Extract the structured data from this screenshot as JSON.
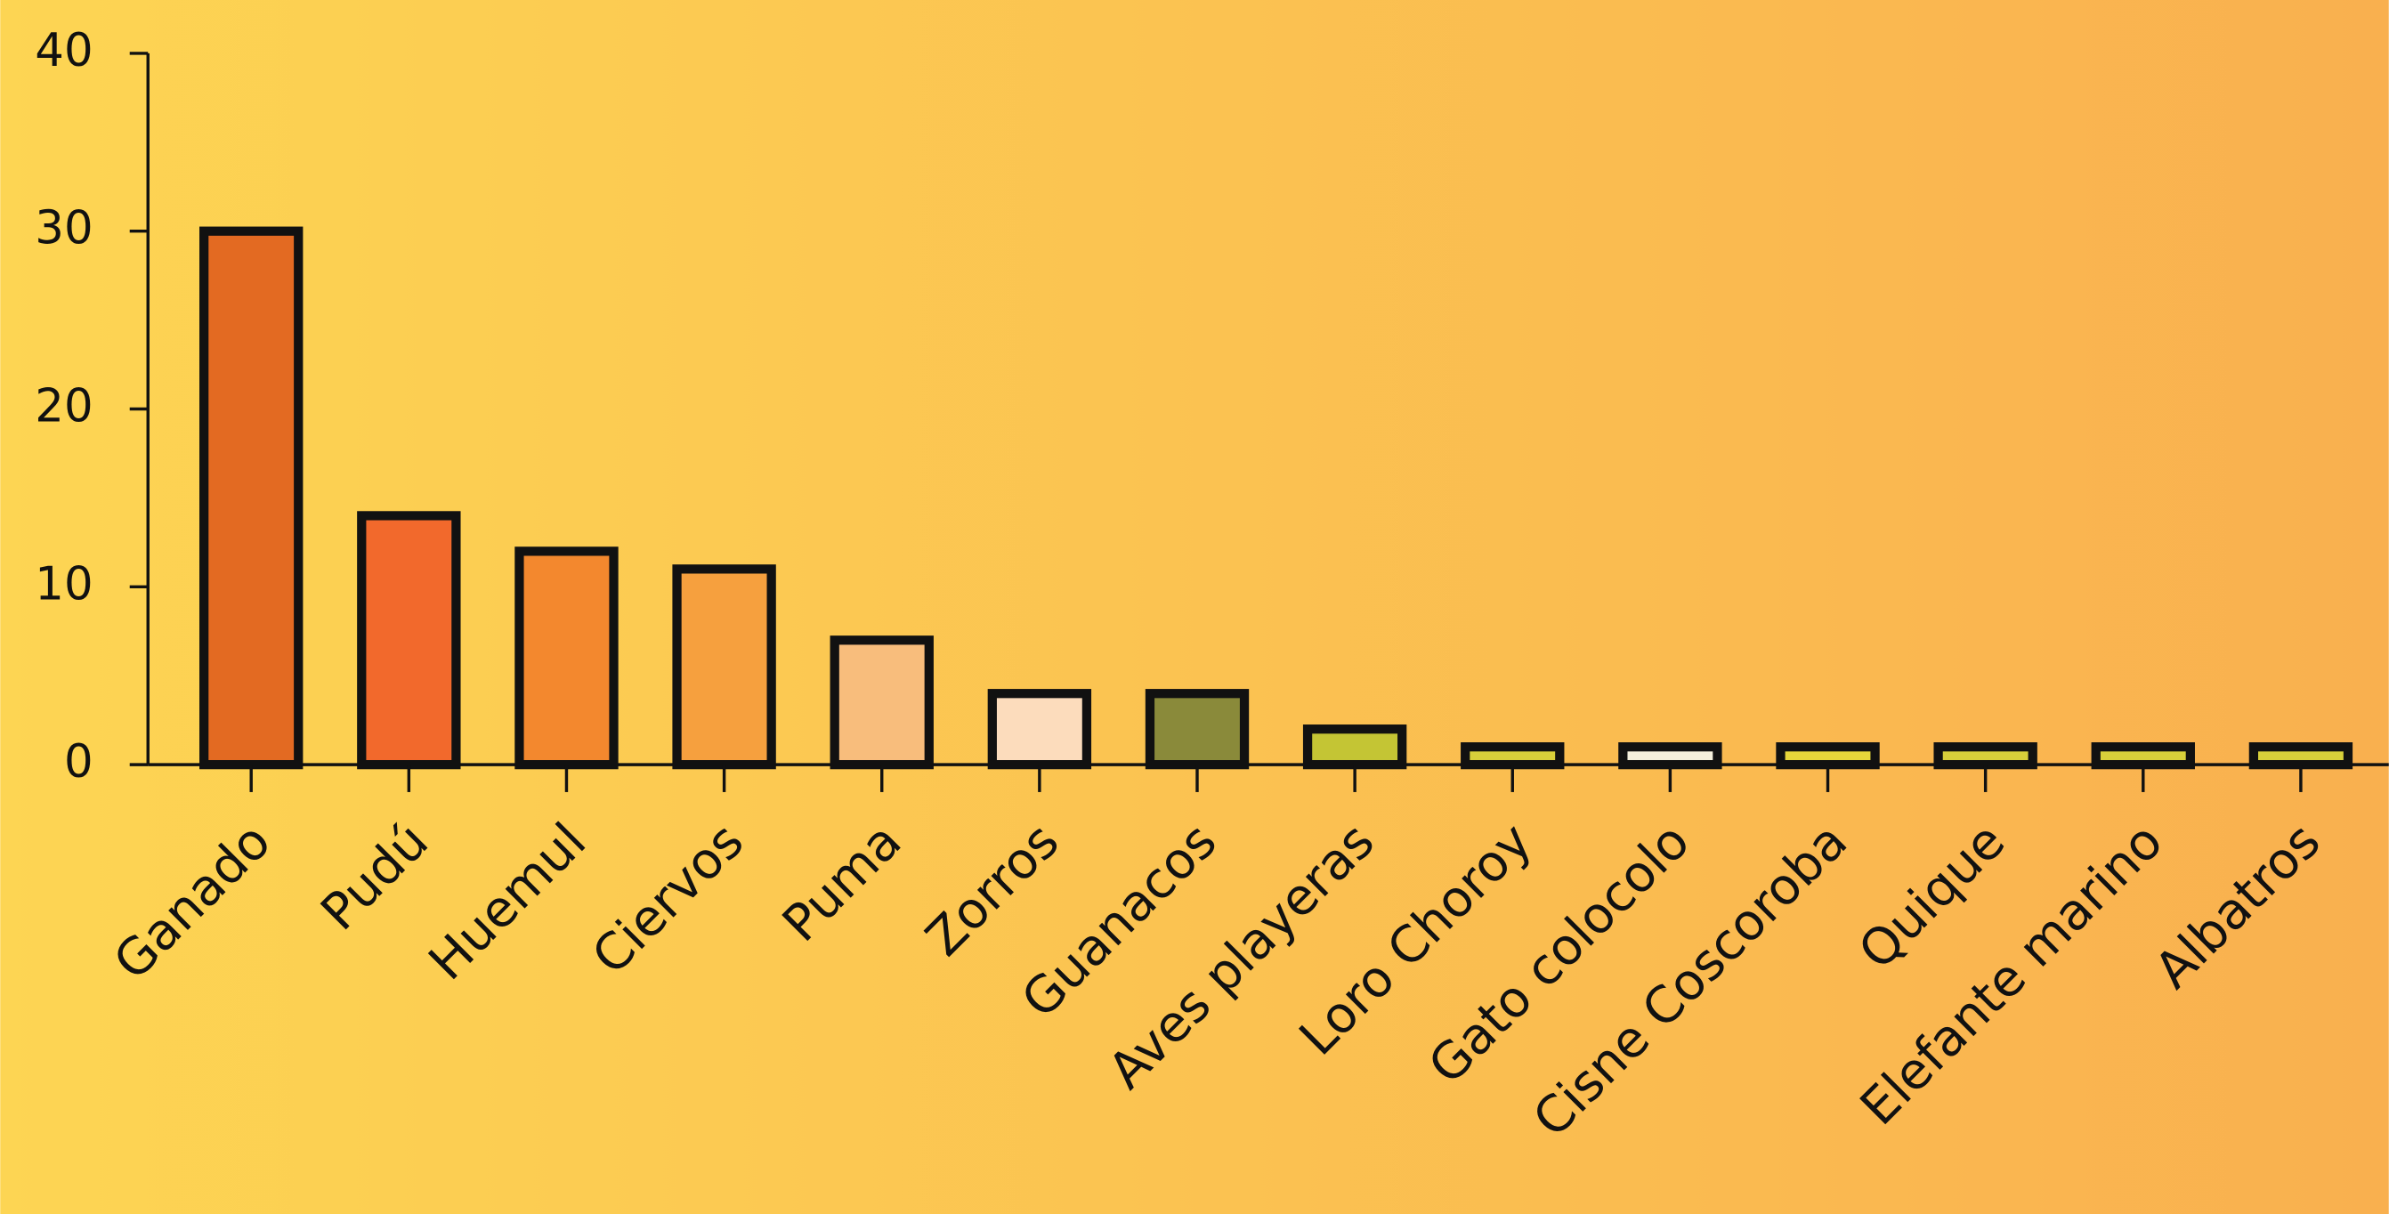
{
  "chart_data": {
    "type": "bar",
    "categories": [
      "Ganado",
      "Pudú",
      "Huemul",
      "Ciervos",
      "Puma",
      "Zorros",
      "Guanacos",
      "Aves playeras",
      "Loro Choroy",
      "Gato colocolo",
      "Cisne Coscoroba",
      "Quique",
      "Elefante marino",
      "Albatros"
    ],
    "values": [
      30,
      14,
      12,
      11,
      7,
      4,
      4,
      2,
      1,
      1,
      1,
      1,
      1,
      1
    ],
    "colors": [
      "#e36a22",
      "#f2692c",
      "#f3882e",
      "#f6a03e",
      "#f8bd7c",
      "#fcdcbc",
      "#8a8a3a",
      "#c4c534",
      "#d8cf3a",
      "#f5f0dd",
      "#e6d63a",
      "#d8d03a",
      "#d8d03a",
      "#d8d03a"
    ],
    "ylim": [
      0,
      40
    ],
    "yticks": [
      0,
      10,
      20,
      30,
      40
    ]
  }
}
